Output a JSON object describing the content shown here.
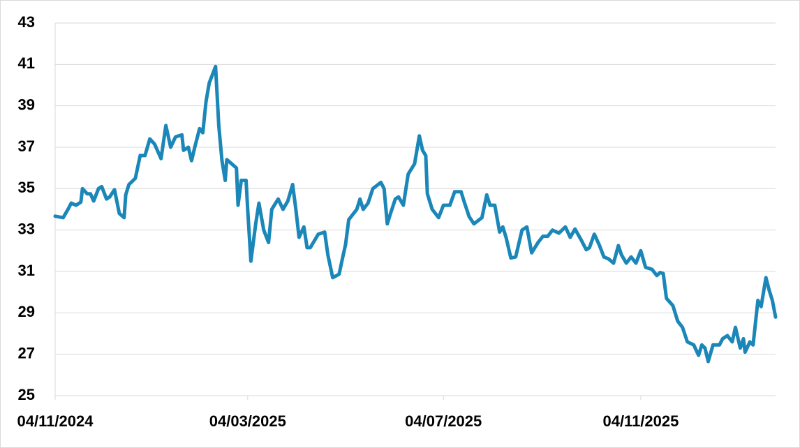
{
  "chart_data": {
    "type": "line",
    "x": [
      "04/11/2024",
      "09/11/2024",
      "12/11/2024",
      "14/11/2024",
      "17/11/2024",
      "20/11/2024",
      "21/11/2024",
      "24/11/2024",
      "26/11/2024",
      "28/11/2024",
      "01/12/2024",
      "03/12/2024",
      "06/12/2024",
      "08/12/2024",
      "11/12/2024",
      "14/12/2024",
      "17/12/2024",
      "18/12/2024",
      "20/12/2024",
      "24/12/2024",
      "27/12/2024",
      "30/12/2024",
      "02/01/2025",
      "05/01/2025",
      "09/01/2025",
      "12/01/2025",
      "15/01/2025",
      "18/01/2025",
      "22/01/2025",
      "23/01/2025",
      "26/01/2025",
      "28/01/2025",
      "30/01/2025",
      "02/02/2025",
      "04/02/2025",
      "06/02/2025",
      "08/02/2025",
      "12/02/2025",
      "14/02/2025",
      "16/02/2025",
      "18/02/2025",
      "19/02/2025",
      "22/02/2025",
      "25/02/2025",
      "26/02/2025",
      "28/02/2025",
      "03/03/2025",
      "04/03/2025",
      "06/03/2025",
      "09/03/2025",
      "11/03/2025",
      "14/03/2025",
      "17/03/2025",
      "19/03/2025",
      "23/03/2025",
      "26/03/2025",
      "29/03/2025",
      "01/04/2025",
      "03/04/2025",
      "05/04/2025",
      "08/04/2025",
      "10/04/2025",
      "12/04/2025",
      "17/04/2025",
      "21/04/2025",
      "23/04/2025",
      "26/04/2025",
      "30/04/2025",
      "02/05/2025",
      "04/05/2025",
      "06/05/2025",
      "11/05/2025",
      "13/05/2025",
      "15/05/2025",
      "18/05/2025",
      "21/05/2025",
      "26/05/2025",
      "28/05/2025",
      "30/05/2025",
      "01/06/2025",
      "04/06/2025",
      "06/06/2025",
      "09/06/2025",
      "12/06/2025",
      "16/06/2025",
      "19/06/2025",
      "21/06/2025",
      "23/06/2025",
      "24/06/2025",
      "27/06/2025",
      "01/07/2025",
      "04/07/2025",
      "08/07/2025",
      "11/07/2025",
      "15/07/2025",
      "17/07/2025",
      "20/07/2025",
      "23/07/2025",
      "28/07/2025",
      "31/07/2025",
      "02/08/2025",
      "05/08/2025",
      "08/08/2025",
      "10/08/2025",
      "12/08/2025",
      "15/08/2025",
      "18/08/2025",
      "22/08/2025",
      "25/08/2025",
      "28/08/2025",
      "01/09/2025",
      "04/09/2025",
      "07/09/2025",
      "10/09/2025",
      "14/09/2025",
      "18/09/2025",
      "21/09/2025",
      "24/09/2025",
      "28/09/2025",
      "01/10/2025",
      "03/10/2025",
      "06/10/2025",
      "09/10/2025",
      "12/10/2025",
      "15/10/2025",
      "18/10/2025",
      "21/10/2025",
      "23/10/2025",
      "26/10/2025",
      "29/10/2025",
      "01/11/2025",
      "04/11/2025",
      "07/11/2025",
      "11/11/2025",
      "14/11/2025",
      "16/11/2025",
      "18/11/2025",
      "20/11/2025",
      "24/11/2025",
      "27/11/2025",
      "30/11/2025",
      "03/12/2025",
      "07/12/2025",
      "10/12/2025",
      "12/12/2025",
      "14/12/2025",
      "16/12/2025",
      "19/12/2025",
      "23/12/2025",
      "25/12/2025",
      "28/12/2025",
      "31/12/2025",
      "02/01/2026",
      "05/01/2026",
      "07/01/2026",
      "08/01/2026",
      "11/01/2026",
      "13/01/2026",
      "16/01/2026",
      "18/01/2026",
      "21/01/2026",
      "23/01/2026",
      "25/01/2026",
      "27/01/2026"
    ],
    "values": [
      33.67,
      33.6,
      34.0,
      34.3,
      34.2,
      34.35,
      35.0,
      34.75,
      34.75,
      34.4,
      35.0,
      35.1,
      34.5,
      34.6,
      34.95,
      33.8,
      33.6,
      34.7,
      35.2,
      35.5,
      36.6,
      36.6,
      37.4,
      37.15,
      36.45,
      38.05,
      37.0,
      37.5,
      37.6,
      36.85,
      37.0,
      36.35,
      37.0,
      37.9,
      37.7,
      39.2,
      40.1,
      40.9,
      38.05,
      36.35,
      35.4,
      36.4,
      36.2,
      36.0,
      34.2,
      35.4,
      35.4,
      34.0,
      31.5,
      33.3,
      34.3,
      33.0,
      32.4,
      34.0,
      34.5,
      34.0,
      34.4,
      35.2,
      34.0,
      32.65,
      33.15,
      32.15,
      32.15,
      32.8,
      32.9,
      31.8,
      30.7,
      30.87,
      31.6,
      32.3,
      33.5,
      34.0,
      34.5,
      34.0,
      34.3,
      35.0,
      35.3,
      35.0,
      33.3,
      33.8,
      34.5,
      34.6,
      34.2,
      35.7,
      36.2,
      37.55,
      36.85,
      36.6,
      34.75,
      34.0,
      33.6,
      34.2,
      34.2,
      34.85,
      34.85,
      34.35,
      33.65,
      33.3,
      33.6,
      34.7,
      34.2,
      34.2,
      32.9,
      33.15,
      32.65,
      31.65,
      31.7,
      33.0,
      33.15,
      31.9,
      32.4,
      32.7,
      32.7,
      33.0,
      32.85,
      33.15,
      32.65,
      33.05,
      32.5,
      32.05,
      32.15,
      32.8,
      32.3,
      31.7,
      31.6,
      31.4,
      32.25,
      31.8,
      31.4,
      31.7,
      31.4,
      32.0,
      31.2,
      31.1,
      30.8,
      30.95,
      30.9,
      29.7,
      29.35,
      28.6,
      28.3,
      27.6,
      27.45,
      26.95,
      27.45,
      27.3,
      26.65,
      27.45,
      27.45,
      27.75,
      27.9,
      27.6,
      28.3,
      27.3,
      27.75,
      27.1,
      27.6,
      27.45,
      29.6,
      29.3,
      30.7,
      30.1,
      29.6,
      28.8
    ],
    "color": "#1b87b8",
    "xlim": [
      "04/11/2024",
      "27/01/2026"
    ],
    "xticks": [
      "04/11/2024",
      "04/03/2025",
      "04/07/2025",
      "04/11/2025"
    ],
    "ylim": [
      25,
      43
    ],
    "yticks": [
      25,
      27,
      29,
      31,
      33,
      35,
      37,
      39,
      41,
      43
    ],
    "grid": true
  }
}
